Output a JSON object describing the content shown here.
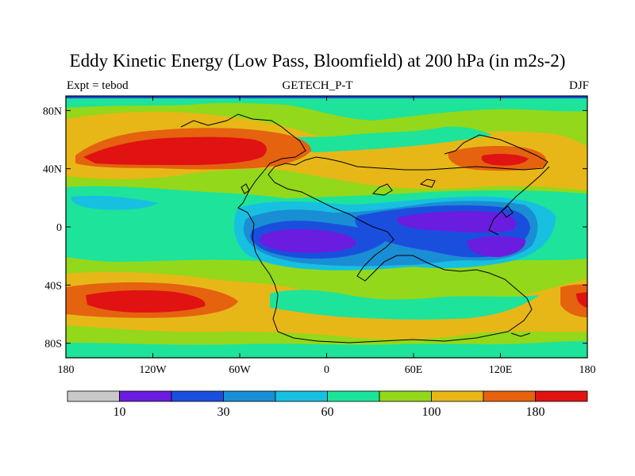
{
  "title": "Eddy Kinetic Energy (Low Pass, Bloomfield) at 200 hPa (in m2s-2)",
  "left_string": "Expt = tebod",
  "center_string": "GETECH_P-T",
  "right_string": "DJF",
  "map": {
    "projection": "cylindrical equidistant",
    "lon_range": [
      -180,
      180
    ],
    "lat_range": [
      -90,
      90
    ],
    "x_ticks": [
      {
        "lon": -180,
        "label": "180"
      },
      {
        "lon": -120,
        "label": "120W"
      },
      {
        "lon": -60,
        "label": "60W"
      },
      {
        "lon": 0,
        "label": "0"
      },
      {
        "lon": 60,
        "label": "60E"
      },
      {
        "lon": 120,
        "label": "120E"
      },
      {
        "lon": 180,
        "label": "180"
      }
    ],
    "y_ticks": [
      {
        "lat": 80,
        "label": "80N"
      },
      {
        "lat": 40,
        "label": "40N"
      },
      {
        "lat": 0,
        "label": "0"
      },
      {
        "lat": -40,
        "label": "40S"
      },
      {
        "lat": -80,
        "label": "80S"
      }
    ]
  },
  "colorbar": {
    "colors": [
      "#c8c8c8",
      "#6a1ddf",
      "#1a4fde",
      "#1a8ed4",
      "#17c0e0",
      "#1ee39a",
      "#93d81a",
      "#e7b718",
      "#e5620f",
      "#e01212"
    ],
    "labels": [
      {
        "index": 1,
        "text": "10"
      },
      {
        "index": 3,
        "text": "30"
      },
      {
        "index": 5,
        "text": "60"
      },
      {
        "index": 7,
        "text": "100"
      },
      {
        "index": 9,
        "text": "180"
      }
    ]
  }
}
